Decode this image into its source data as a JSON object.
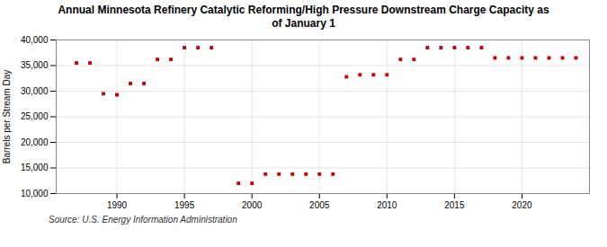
{
  "chart_data": {
    "type": "scatter",
    "title": "Annual Minnesota Refinery Catalytic Reforming/High Pressure Downstream Charge Capacity as\nof January 1",
    "ylabel": "Barrels per Stream Day",
    "source": "Source: U.S. Energy Information Administration",
    "x": [
      1987,
      1988,
      1989,
      1990,
      1991,
      1992,
      1993,
      1994,
      1995,
      1996,
      1997,
      1999,
      2000,
      2001,
      2002,
      2003,
      2004,
      2005,
      2006,
      2007,
      2008,
      2009,
      2010,
      2011,
      2012,
      2013,
      2014,
      2015,
      2016,
      2017,
      2018,
      2019,
      2020,
      2021,
      2022,
      2023,
      2024
    ],
    "values": [
      35500,
      35500,
      29500,
      29300,
      31500,
      31500,
      36200,
      36200,
      38500,
      38500,
      38500,
      12000,
      12000,
      13800,
      13800,
      13800,
      13800,
      13800,
      13800,
      32800,
      33200,
      33200,
      33200,
      36200,
      36200,
      38500,
      38500,
      38500,
      38500,
      38500,
      36500,
      36500,
      36500,
      36500,
      36500,
      36500,
      36500
    ],
    "color": "#cc0000",
    "marker": "square",
    "xlim": [
      1985.5,
      2025
    ],
    "xticks": [
      1990,
      1995,
      2000,
      2005,
      2010,
      2015,
      2020
    ],
    "ylim": [
      10000,
      40000
    ],
    "yticks": [
      {
        "value": 10000,
        "label": "10,000"
      },
      {
        "value": 15000,
        "label": "15,000"
      },
      {
        "value": 20000,
        "label": "20,000"
      },
      {
        "value": 25000,
        "label": "25,000"
      },
      {
        "value": 30000,
        "label": "30,000"
      },
      {
        "value": 35000,
        "label": "35,000"
      },
      {
        "value": 40000,
        "label": "40,000"
      }
    ],
    "grid": true
  }
}
